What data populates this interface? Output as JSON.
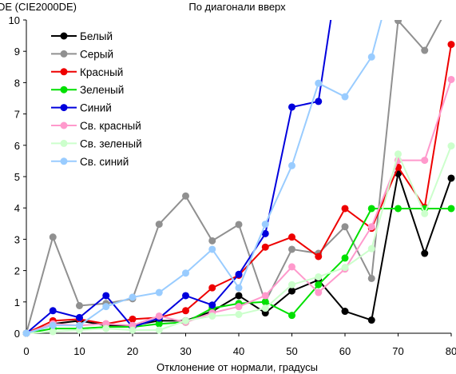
{
  "chart_data": {
    "type": "line",
    "title": "По диагонали вверх",
    "ylabel": "DE (CIE2000DE)",
    "xlabel": "Отклонение от нормали, градусы",
    "xlim": [
      0,
      80
    ],
    "ylim": [
      0,
      10
    ],
    "x_ticks": [
      0,
      10,
      20,
      30,
      40,
      50,
      60,
      70,
      80
    ],
    "y_ticks": [
      0,
      1,
      2,
      3,
      4,
      5,
      6,
      7,
      8,
      9,
      10
    ],
    "grid": false,
    "legend": "top-left",
    "x": [
      0,
      5,
      10,
      15,
      20,
      25,
      30,
      35,
      40,
      45,
      50,
      55,
      60,
      65,
      70,
      75,
      80
    ],
    "series": [
      {
        "name": "Белый",
        "color": "#000000",
        "values": [
          0,
          0.3,
          0.4,
          0.25,
          0.25,
          0.4,
          0.4,
          0.7,
          1.2,
          0.65,
          1.35,
          1.7,
          0.7,
          0.42,
          5.1,
          2.55,
          4.95
        ]
      },
      {
        "name": "Серый",
        "color": "#909090",
        "values": [
          0,
          3.07,
          0.88,
          0.95,
          1.1,
          3.48,
          4.38,
          2.95,
          3.47,
          1.0,
          2.68,
          2.55,
          3.4,
          1.75,
          9.98,
          9.03,
          10.6
        ]
      },
      {
        "name": "Красный",
        "color": "#ee0000",
        "values": [
          0,
          0.4,
          0.45,
          0.3,
          0.45,
          0.5,
          0.72,
          1.45,
          1.85,
          2.75,
          3.07,
          2.45,
          3.98,
          3.35,
          5.3,
          4.02,
          9.22
        ]
      },
      {
        "name": "Зеленый",
        "color": "#00e000",
        "values": [
          0,
          0.15,
          0.15,
          0.2,
          0.2,
          0.3,
          0.35,
          0.8,
          0.95,
          1.0,
          0.57,
          1.55,
          2.4,
          3.98,
          3.98,
          3.98,
          3.98
        ]
      },
      {
        "name": "Синий",
        "color": "#0000dd",
        "values": [
          0,
          0.72,
          0.5,
          1.2,
          0.2,
          0.48,
          1.2,
          0.9,
          1.88,
          3.18,
          7.22,
          7.4,
          13,
          null,
          null,
          null,
          null
        ]
      },
      {
        "name": "Св. красный",
        "color": "#ff99cc",
        "values": [
          0,
          0.3,
          0.25,
          0.3,
          0.25,
          0.55,
          0.35,
          0.65,
          0.85,
          1.2,
          2.12,
          1.3,
          2.05,
          3.4,
          5.52,
          5.52,
          8.1
        ]
      },
      {
        "name": "Св. зеленый",
        "color": "#ccffcc",
        "values": [
          0,
          0.05,
          0.1,
          0.15,
          0.1,
          0.1,
          0.4,
          0.55,
          0.6,
          0.8,
          1.55,
          1.8,
          2.1,
          2.7,
          5.72,
          3.82,
          5.98
        ]
      },
      {
        "name": "Св. синий",
        "color": "#99ccff",
        "values": [
          0,
          0.25,
          0.25,
          0.85,
          1.15,
          1.3,
          1.92,
          2.68,
          1.45,
          3.48,
          5.35,
          7.98,
          7.55,
          8.82,
          12,
          null,
          null
        ]
      }
    ]
  }
}
